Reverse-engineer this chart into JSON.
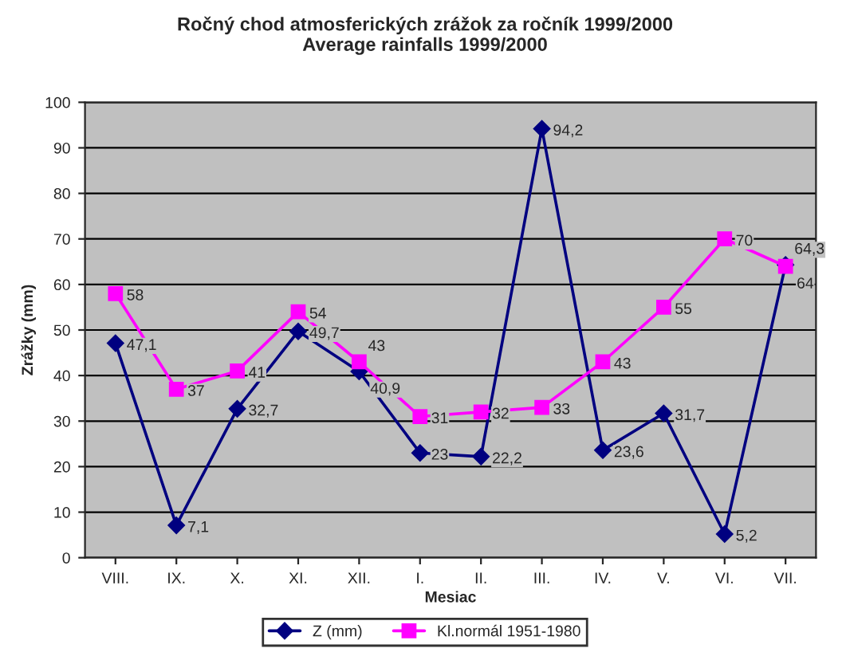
{
  "chart_data": {
    "type": "line",
    "title": "Ročný chod atmosferických zrážok za ročník 1999/2000\nAverage rainfalls 1999/2000",
    "xlabel": "Mesiac",
    "ylabel": "Zrážky (mm)",
    "categories": [
      "VIII.",
      "IX.",
      "X.",
      "XI.",
      "XII.",
      "I.",
      "II.",
      "III.",
      "IV.",
      "V.",
      "VI.",
      "VII."
    ],
    "series": [
      {
        "name": "Z (mm)",
        "color": "#000080",
        "marker": "diamond",
        "values": [
          47.1,
          7.1,
          32.7,
          49.7,
          40.9,
          23,
          22.2,
          94.2,
          23.6,
          31.7,
          5.2,
          64.3
        ],
        "value_labels": [
          "47,1",
          "7,1",
          "32,7",
          "49,7",
          "40,9",
          "23",
          "22,2",
          "94,2",
          "23,6",
          "31,7",
          "5,2",
          "64,3"
        ]
      },
      {
        "name": "Kl.normál 1951-1980",
        "color": "#ff00ff",
        "marker": "square",
        "values": [
          58,
          37,
          41,
          54,
          43,
          31,
          32,
          33,
          43,
          55,
          70,
          64
        ],
        "value_labels": [
          "58",
          "37",
          "41",
          "54",
          "43",
          "31",
          "32",
          "33",
          "43",
          "55",
          "70",
          "64"
        ]
      }
    ],
    "ylim": [
      0,
      100
    ],
    "yticks": [
      0,
      10,
      20,
      30,
      40,
      50,
      60,
      70,
      80,
      90,
      100
    ],
    "grid": "y",
    "legend": "bottom",
    "line_style": "solid"
  }
}
